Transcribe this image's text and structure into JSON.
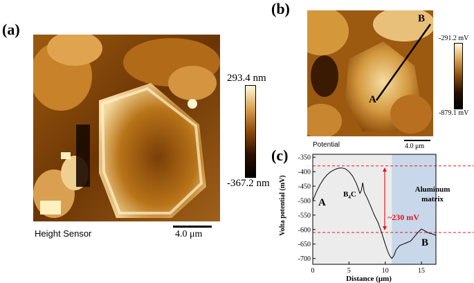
{
  "panel_a": {
    "label": "(a)",
    "caption": "Height Sensor",
    "scalebar": "4.0 μm",
    "colorbar": {
      "max": "293.4 nm",
      "min": "-367.2 nm"
    }
  },
  "panel_b": {
    "label": "(b)",
    "caption": "Potential",
    "scalebar": "4.0 μm",
    "colorbar": {
      "max": "-291.2 mV",
      "min": "-879.1 mV"
    },
    "line_labels": {
      "start": "A",
      "end": "B"
    }
  },
  "panel_c": {
    "label": "(c)",
    "annotations": {
      "point_a": "A",
      "point_b": "B",
      "phase_b4c_main": "B",
      "phase_b4c_sub": "4",
      "phase_b4c_tail": "C",
      "matrix_line1": "Aluminum",
      "matrix_line2": "matrix",
      "difference": "~230 mV"
    }
  },
  "colors": {
    "difference": "#e8141b",
    "matrix_region": "#c9d7ea",
    "b4c_region": "#ececec",
    "afm_dark": "#1a0a00",
    "afm_mid": "#b36a10",
    "afm_light": "#fff8dc"
  },
  "chart_data": {
    "type": "line",
    "title": "",
    "xlabel": "Distance (μm)",
    "ylabel": "Volta potential (mV)",
    "xlim": [
      0,
      17
    ],
    "ylim": [
      -720,
      -340
    ],
    "x_ticks": [
      0,
      5,
      10,
      15
    ],
    "y_ticks": [
      -350,
      -400,
      -450,
      -500,
      -550,
      -600,
      -650,
      -700
    ],
    "shaded_regions": [
      {
        "from": 0,
        "to": 10.9,
        "color": "#ececec"
      },
      {
        "from": 10.9,
        "to": 17,
        "color": "#c9d7ea"
      }
    ],
    "reference_lines": [
      -380,
      -610
    ],
    "series": [
      {
        "x": [
          0,
          0.5,
          1,
          1.5,
          2,
          2.5,
          3,
          3.5,
          4,
          4.5,
          5,
          5.5,
          6,
          6.3,
          6.5,
          6.7,
          6.9,
          7.1,
          7.3,
          7.5,
          8,
          8.5,
          9,
          9.5,
          10,
          10.3,
          10.6,
          10.9,
          11.2,
          11.5,
          12,
          12.5,
          13,
          13.5,
          14,
          14.5,
          15,
          15.5,
          16,
          16.5,
          17
        ],
        "y": [
          -500,
          -470,
          -445,
          -425,
          -410,
          -400,
          -393,
          -388,
          -387,
          -390,
          -400,
          -415,
          -440,
          -460,
          -475,
          -465,
          -438,
          -470,
          -480,
          -490,
          -520,
          -550,
          -575,
          -610,
          -650,
          -672,
          -690,
          -700,
          -690,
          -670,
          -655,
          -650,
          -645,
          -640,
          -625,
          -610,
          -598,
          -605,
          -612,
          -615,
          -620
        ]
      }
    ]
  }
}
